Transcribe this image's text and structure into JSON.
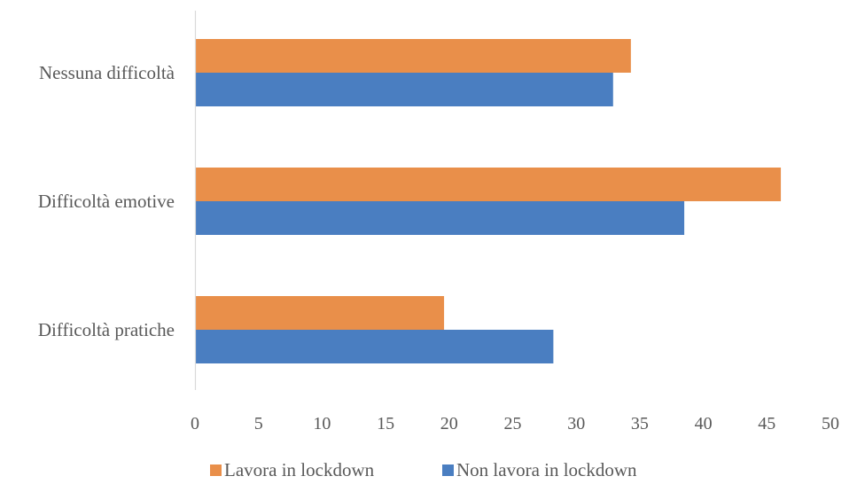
{
  "chart_data": {
    "type": "bar",
    "orientation": "horizontal",
    "title": "",
    "xlabel": "",
    "ylabel": "",
    "categories": [
      "Nessuna difficoltà",
      "Difficoltà emotive",
      "Difficoltà pratiche"
    ],
    "series": [
      {
        "name": "Lavora in lockdown",
        "color": "#E98F4A",
        "values": [
          34.3,
          46.1,
          19.6
        ]
      },
      {
        "name": "Non lavora in lockdown",
        "color": "#4A7EC1",
        "values": [
          32.9,
          38.5,
          28.2
        ]
      }
    ],
    "xlim": [
      0,
      50
    ],
    "xticks": [
      "0",
      "5",
      "10",
      "15",
      "20",
      "25",
      "30",
      "35",
      "40",
      "45",
      "50"
    ],
    "grid": false,
    "legend_position": "bottom"
  }
}
